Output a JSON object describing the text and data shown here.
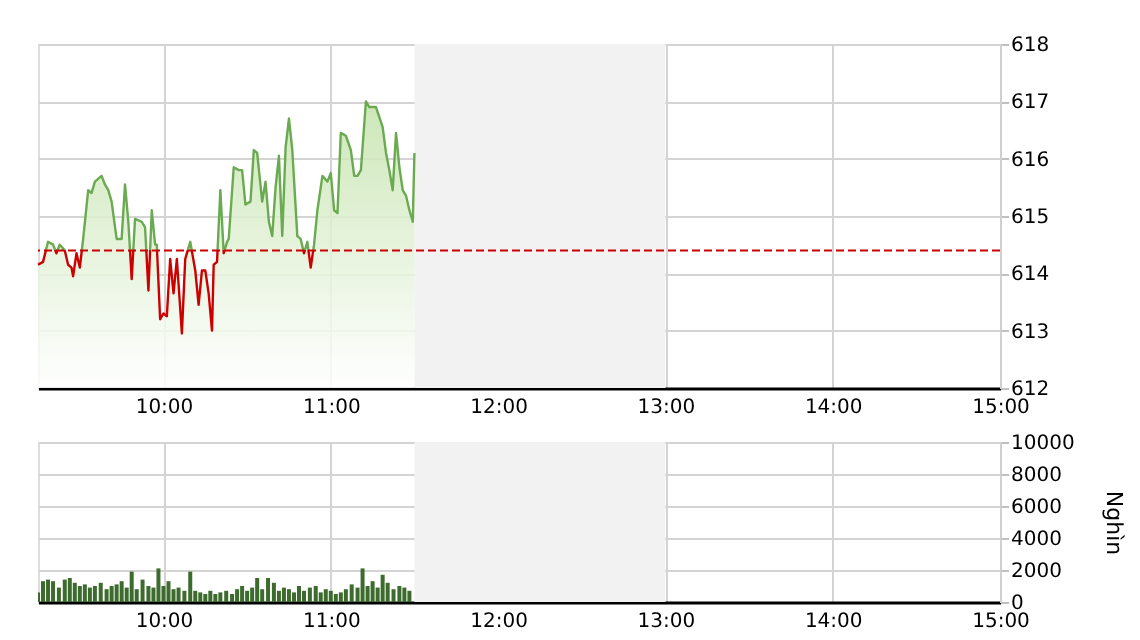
{
  "chart_data": [
    {
      "type": "area",
      "xlim": [
        9.25,
        15
      ],
      "xticks": [
        {
          "value": 10,
          "label": "10:00"
        },
        {
          "value": 11,
          "label": "11:00"
        },
        {
          "value": 12,
          "label": "12:00"
        },
        {
          "value": 13,
          "label": "13:00"
        },
        {
          "value": 14,
          "label": "14:00"
        },
        {
          "value": 15,
          "label": "15:00"
        }
      ],
      "ylim": [
        612,
        618
      ],
      "yticks": [
        612,
        613,
        614,
        615,
        616,
        617,
        618
      ],
      "grid": true,
      "series": [
        {
          "color": "#6aaa50",
          "x": [
            9.25,
            9.28,
            9.31,
            9.34,
            9.36,
            9.38,
            9.41,
            9.43,
            9.45,
            9.46,
            9.48,
            9.5,
            9.52,
            9.55,
            9.57,
            9.59,
            9.63,
            9.65,
            9.67,
            9.69,
            9.72,
            9.75,
            9.77,
            9.79,
            9.81,
            9.83,
            9.87,
            9.89,
            9.91,
            9.93,
            9.95,
            9.96,
            9.98,
            10.0,
            10.02,
            10.04,
            10.06,
            10.08,
            10.11,
            10.13,
            10.16,
            10.19,
            10.21,
            10.23,
            10.25,
            10.27,
            10.29,
            10.3,
            10.32,
            10.34,
            10.36,
            10.38,
            10.39,
            10.42,
            10.45,
            10.47,
            10.49,
            10.52,
            10.54,
            10.56,
            10.59,
            10.61,
            10.63,
            10.65,
            10.67,
            10.69,
            10.71,
            10.73,
            10.75,
            10.77,
            10.8,
            10.82,
            10.84,
            10.86,
            10.88,
            10.9,
            10.92,
            10.95,
            10.98,
            11.0,
            11.02,
            11.04,
            11.06,
            11.09,
            11.12,
            11.14,
            11.16,
            11.18,
            11.2,
            11.21,
            11.23,
            11.27,
            11.31,
            11.33,
            11.35,
            11.37,
            11.39,
            11.41,
            11.43,
            11.45,
            11.47,
            11.49,
            11.5
          ],
          "values": [
            614.15,
            614.2,
            614.55,
            614.5,
            614.35,
            614.5,
            614.4,
            614.15,
            614.1,
            613.95,
            614.35,
            614.1,
            614.6,
            615.45,
            615.4,
            615.6,
            615.7,
            615.55,
            615.45,
            615.25,
            614.6,
            614.6,
            615.55,
            614.9,
            613.9,
            614.95,
            614.9,
            614.8,
            613.7,
            615.1,
            614.5,
            614.5,
            613.2,
            613.3,
            613.25,
            614.25,
            613.65,
            614.25,
            612.95,
            614.25,
            614.55,
            614.05,
            613.45,
            614.05,
            614.05,
            613.65,
            613.0,
            614.15,
            614.2,
            615.45,
            614.35,
            614.55,
            614.6,
            615.85,
            615.8,
            615.8,
            615.2,
            615.25,
            616.15,
            616.1,
            615.25,
            615.6,
            614.9,
            614.65,
            615.5,
            616.05,
            614.65,
            616.2,
            616.7,
            616.15,
            614.65,
            614.6,
            614.35,
            614.55,
            614.1,
            614.5,
            615.1,
            615.7,
            615.6,
            615.75,
            615.1,
            615.05,
            616.45,
            616.4,
            616.15,
            615.7,
            615.7,
            615.8,
            616.6,
            617.0,
            616.9,
            616.9,
            616.55,
            616.1,
            615.8,
            615.45,
            616.45,
            615.85,
            615.45,
            615.35,
            615.1,
            614.9,
            616.1
          ]
        }
      ],
      "ref_lines": [
        {
          "axis": "y",
          "value": 614.4,
          "color": "#cc0000",
          "line_style": "dashed"
        }
      ],
      "bands": [
        {
          "axis": "x",
          "from": 11.5,
          "to": 13,
          "color": "#f2f2f2"
        }
      ]
    },
    {
      "type": "bar",
      "ylabel": "Nghìn",
      "xlim": [
        9.25,
        15
      ],
      "xticks": [
        {
          "value": 10,
          "label": "10:00"
        },
        {
          "value": 11,
          "label": "11:00"
        },
        {
          "value": 12,
          "label": "12:00"
        },
        {
          "value": 13,
          "label": "13:00"
        },
        {
          "value": 14,
          "label": "14:00"
        },
        {
          "value": 15,
          "label": "15:00"
        }
      ],
      "ylim": [
        0,
        10000
      ],
      "yticks": [
        0,
        2000,
        4000,
        6000,
        8000,
        10000
      ],
      "grid": true,
      "x": [
        9.25,
        9.28,
        9.31,
        9.34,
        9.375,
        9.41,
        9.44,
        9.47,
        9.5,
        9.53,
        9.56,
        9.59,
        9.625,
        9.66,
        9.69,
        9.72,
        9.75,
        9.78,
        9.81,
        9.84,
        9.875,
        9.91,
        9.94,
        9.97,
        10.0,
        10.03,
        10.06,
        10.09,
        10.125,
        10.16,
        10.19,
        10.22,
        10.25,
        10.28,
        10.31,
        10.34,
        10.375,
        10.41,
        10.44,
        10.47,
        10.5,
        10.53,
        10.56,
        10.59,
        10.625,
        10.66,
        10.69,
        10.72,
        10.75,
        10.78,
        10.81,
        10.84,
        10.875,
        10.91,
        10.94,
        10.97,
        11.0,
        11.03,
        11.06,
        11.09,
        11.125,
        11.16,
        11.19,
        11.22,
        11.25,
        11.28,
        11.31,
        11.34,
        11.375,
        11.41,
        11.44,
        11.47
      ],
      "series": [
        {
          "color": "#3d6b2e",
          "values": [
            600,
            1300,
            1400,
            1300,
            900,
            1400,
            1500,
            1200,
            1000,
            1100,
            900,
            1000,
            1200,
            800,
            1000,
            1100,
            1300,
            900,
            1900,
            800,
            1400,
            1000,
            900,
            2100,
            1000,
            1300,
            800,
            900,
            700,
            1900,
            700,
            600,
            500,
            700,
            500,
            600,
            700,
            500,
            800,
            1000,
            700,
            900,
            1500,
            800,
            1500,
            1200,
            700,
            900,
            800,
            600,
            1000,
            700,
            900,
            1000,
            600,
            800,
            700,
            500,
            600,
            800,
            1100,
            900,
            2100,
            1000,
            1300,
            900,
            1700,
            1200,
            800,
            1000,
            900,
            700
          ]
        }
      ],
      "bands": [
        {
          "axis": "x",
          "from": 11.5,
          "to": 13,
          "color": "#f2f2f2"
        }
      ]
    }
  ]
}
